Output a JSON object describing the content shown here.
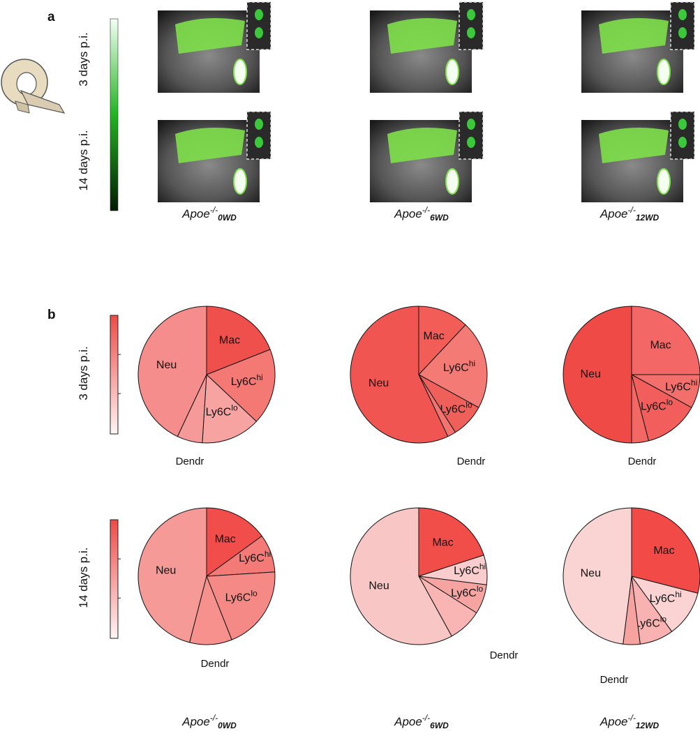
{
  "panel_a": {
    "label": "a",
    "rows": [
      "3 days p.i.",
      "14 days p.i."
    ]
  },
  "panel_b": {
    "label": "b",
    "rows": [
      "3 days p.i.",
      "14 days p.i."
    ]
  },
  "groups": [
    {
      "name": "Apoe",
      "sup": "-/-",
      "sub": "0WD"
    },
    {
      "name": "Apoe",
      "sup": "-/-",
      "sub": "6WD"
    },
    {
      "name": "Apoe",
      "sup": "-/-",
      "sub": "12WD"
    }
  ],
  "chart_data": [
    {
      "type": "pie",
      "categories": [
        "Mac",
        "Ly6C",
        "Ly6C",
        "Dendr",
        "Neu"
      ],
      "category_superscripts": [
        null,
        "hi",
        "lo",
        null,
        null
      ],
      "values": [
        19,
        18,
        14,
        6,
        43
      ],
      "colors": [
        "#f0504c",
        "#f47874",
        "#f7a3a1",
        "#f59a98",
        "#f48d8b"
      ]
    },
    {
      "type": "pie",
      "categories": [
        "Mac",
        "Ly6C",
        "Ly6C",
        "Dendr",
        "Neu"
      ],
      "category_superscripts": [
        null,
        "hi",
        "lo",
        null,
        null
      ],
      "values": [
        12,
        21,
        8,
        2,
        57
      ],
      "colors": [
        "#f25d58",
        "#f47a76",
        "#f0605b",
        "#f27370",
        "#f05552"
      ]
    },
    {
      "type": "pie",
      "categories": [
        "Mac",
        "Ly6C",
        "Ly6C",
        "Dendr",
        "Neu"
      ],
      "category_superscripts": [
        null,
        "hi",
        "lo",
        null,
        null
      ],
      "values": [
        25,
        8,
        13,
        4,
        50
      ],
      "colors": [
        "#f36866",
        "#f36f6c",
        "#f25e5b",
        "#f36764",
        "#ef4a46"
      ]
    },
    {
      "type": "pie",
      "categories": [
        "Mac",
        "Ly6C",
        "Ly6C",
        "Dendr",
        "Neu"
      ],
      "category_superscripts": [
        null,
        "hi",
        "lo",
        null,
        null
      ],
      "values": [
        15,
        9,
        20,
        10,
        46
      ],
      "colors": [
        "#f14e4b",
        "#f47a77",
        "#f58985",
        "#f6918e",
        "#f69a98"
      ]
    },
    {
      "type": "pie",
      "categories": [
        "Mac",
        "Ly6C",
        "Ly6C",
        "Dendr",
        "Neu"
      ],
      "category_superscripts": [
        null,
        "hi",
        "lo",
        null,
        null
      ],
      "values": [
        20,
        7,
        7,
        8,
        58
      ],
      "colors": [
        "#f14d49",
        "#f9cdcd",
        "#f6a4a2",
        "#f8b5b4",
        "#f9c6c6"
      ]
    },
    {
      "type": "pie",
      "categories": [
        "Mac",
        "Ly6C",
        "Ly6C",
        "Dendr",
        "Neu"
      ],
      "category_superscripts": [
        null,
        "hi",
        "lo",
        null,
        null
      ],
      "values": [
        29,
        11,
        8,
        4,
        48
      ],
      "colors": [
        "#f14a47",
        "#fbd3d3",
        "#f8b2b1",
        "#f6a2a0",
        "#fad3d3"
      ]
    }
  ]
}
